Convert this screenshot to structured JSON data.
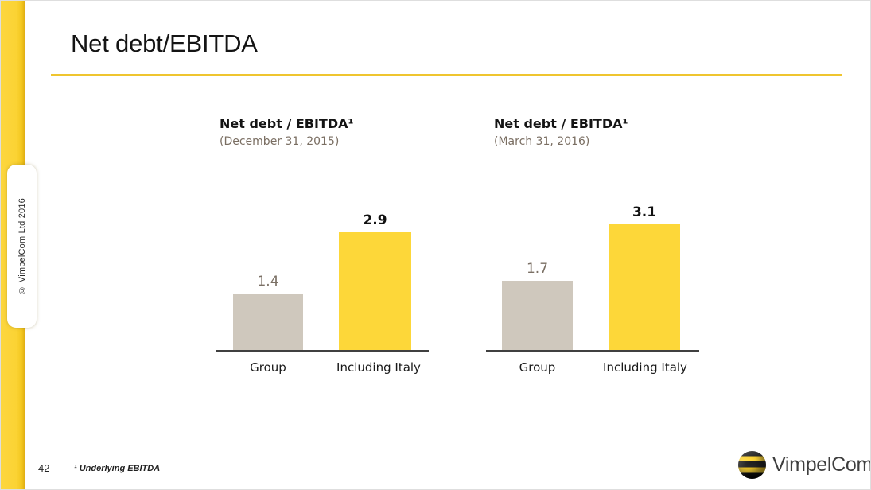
{
  "slide": {
    "title": "Net debt/EBITDA",
    "page_number": "42",
    "footnote": "¹ Underlying EBITDA",
    "copyright_vertical": "© VimpelCom Ltd 2016",
    "logo_text": "VimpelCom"
  },
  "colors": {
    "brand_yellow_bar": "#FDD739",
    "sidebar_yellow": "#FBD334",
    "bar_beige": "#CFC8BD",
    "value_label_gray": "#7B7065",
    "subtitle_gray_brown": "#7A6E62",
    "axis_line_dark": "#404040",
    "title_rule_gold": "#EFC52F"
  },
  "chart_data": [
    {
      "type": "bar",
      "title": "Net debt / EBITDA¹",
      "subtitle": "(December 31, 2015)",
      "categories": [
        "Group",
        "Including Italy"
      ],
      "values": [
        1.4,
        2.9
      ],
      "bar_colors": [
        "#CFC8BD",
        "#FDD739"
      ],
      "value_label_styles": [
        "gray",
        "bold-black"
      ],
      "xlabel": "",
      "ylabel": "",
      "ylim": [
        0,
        3.5
      ],
      "grid": false,
      "legend": false
    },
    {
      "type": "bar",
      "title": "Net debt / EBITDA¹",
      "subtitle": "(March 31, 2016)",
      "categories": [
        "Group",
        "Including Italy"
      ],
      "values": [
        1.7,
        3.1
      ],
      "bar_colors": [
        "#CFC8BD",
        "#FDD739"
      ],
      "value_label_styles": [
        "gray",
        "bold-black"
      ],
      "xlabel": "",
      "ylabel": "",
      "ylim": [
        0,
        3.5
      ],
      "grid": false,
      "legend": false
    }
  ]
}
